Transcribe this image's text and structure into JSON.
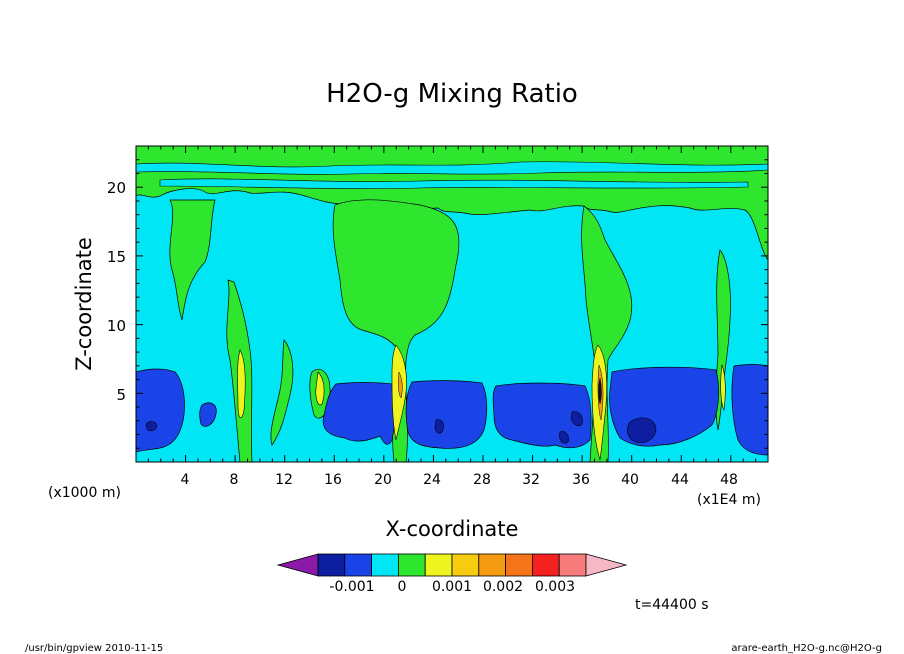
{
  "chart_data": {
    "type": "heatmap",
    "title": "H2O-g Mixing Ratio",
    "xlabel": "X-coordinate",
    "ylabel": "Z-coordinate",
    "x_unit_label": "(x1000 m)",
    "x_scale_label": "(x1E4 m)",
    "xlim": [
      0,
      51
    ],
    "ylim": [
      0,
      23
    ],
    "x_ticks": [
      "4",
      "8",
      "12",
      "16",
      "20",
      "24",
      "28",
      "32",
      "36",
      "40",
      "44",
      "48"
    ],
    "y_ticks": [
      "5",
      "10",
      "15",
      "20"
    ],
    "colorbar": {
      "colors": [
        "#8a1aa8",
        "#0d1fa0",
        "#1a44e8",
        "#00e6f5",
        "#2ee62e",
        "#eef51e",
        "#f5cc0e",
        "#f59b12",
        "#f5741a",
        "#f52020",
        "#f77b7b",
        "#f7b8c6"
      ],
      "labels": [
        "-0.001",
        "0",
        "0.001",
        "0.002",
        "0.003"
      ]
    },
    "annotation": "t=44400 s",
    "footer_left": "/usr/bin/gpview   2010-11-15",
    "footer_right": "arare-earth_H2O-g.nc@H2O-g",
    "background_band_color": "#00e6f5",
    "regions": [
      {
        "value_class": "green",
        "z_range": [
          18.5,
          23
        ],
        "x_range": [
          0,
          51
        ]
      },
      {
        "value_class": "blue",
        "z_range": [
          0,
          6.8
        ],
        "x_range": [
          0,
          5
        ]
      },
      {
        "value_class": "blue",
        "z_range": [
          0,
          5.8
        ],
        "x_range": [
          15,
          21
        ]
      },
      {
        "value_class": "blue",
        "z_range": [
          0,
          5.8
        ],
        "x_range": [
          22,
          28
        ]
      },
      {
        "value_class": "blue",
        "z_range": [
          0,
          5.8
        ],
        "x_range": [
          29,
          37
        ]
      },
      {
        "value_class": "blue",
        "z_range": [
          0,
          6.9
        ],
        "x_range": [
          38,
          47
        ]
      },
      {
        "value_class": "blue",
        "z_range": [
          0,
          6.9
        ],
        "x_range": [
          48,
          51
        ]
      }
    ]
  }
}
